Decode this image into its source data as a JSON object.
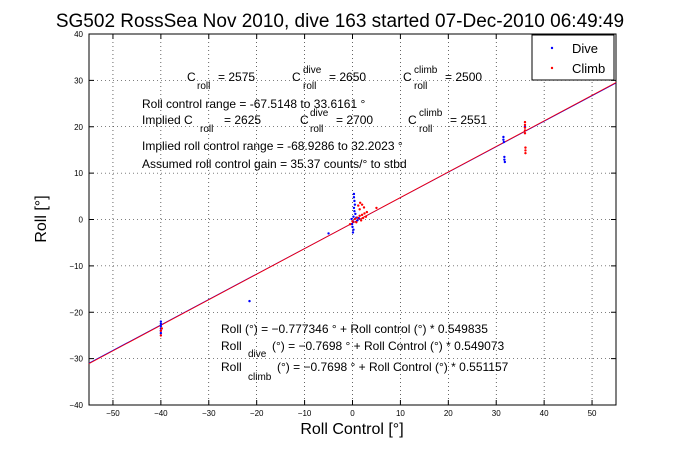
{
  "chart_data": {
    "type": "scatter",
    "title": "SG502 RossSea Nov 2010, dive 163 started 07-Dec-2010 06:49:49",
    "xlabel": "Roll Control [°]",
    "ylabel": "Roll [°]",
    "xlim": [
      -55,
      55
    ],
    "ylim": [
      -40,
      40
    ],
    "xticks": [
      -50,
      -40,
      -30,
      -20,
      -10,
      0,
      10,
      20,
      30,
      40,
      50
    ],
    "yticks": [
      -40,
      -30,
      -20,
      -10,
      0,
      10,
      20,
      30,
      40
    ],
    "grid": true,
    "legend_position": "top-right",
    "series": [
      {
        "name": "Dive",
        "color": "#0000ff",
        "marker": "dot",
        "points": [
          [
            -40,
            -22
          ],
          [
            -40,
            -22.5
          ],
          [
            -40,
            -23
          ],
          [
            -40,
            -23.5
          ],
          [
            -40,
            -24
          ],
          [
            -40,
            -24.5
          ],
          [
            -5,
            -3
          ],
          [
            -21.5,
            -17.6
          ],
          [
            0.3,
            5.5
          ],
          [
            0.3,
            4.8
          ],
          [
            0.4,
            4.0
          ],
          [
            0.5,
            3.2
          ],
          [
            0.3,
            2.5
          ],
          [
            0.4,
            1.8
          ],
          [
            0.6,
            1.2
          ],
          [
            0.2,
            0.6
          ],
          [
            -0.2,
            0.1
          ],
          [
            0.1,
            -0.4
          ],
          [
            -0.1,
            -1.0
          ],
          [
            0.0,
            -1.6
          ],
          [
            0.2,
            -2.2
          ],
          [
            0.1,
            -2.8
          ],
          [
            0.8,
            0.4
          ],
          [
            1.0,
            -0.2
          ],
          [
            1.3,
            0.3
          ],
          [
            31.5,
            17.8
          ],
          [
            31.5,
            17.2
          ],
          [
            31.6,
            16.7
          ],
          [
            31.7,
            13.5
          ],
          [
            31.7,
            12.9
          ],
          [
            31.8,
            12.4
          ],
          [
            36.0,
            20.0
          ]
        ]
      },
      {
        "name": "Climb",
        "color": "#ff0000",
        "marker": "dot",
        "points": [
          [
            -40,
            -25
          ],
          [
            -40,
            -24
          ],
          [
            -39.8,
            -23.5
          ],
          [
            -0.5,
            -1.0
          ],
          [
            0.0,
            -0.4
          ],
          [
            0.5,
            0.1
          ],
          [
            1.0,
            0.4
          ],
          [
            1.5,
            0.8
          ],
          [
            2.0,
            1.0
          ],
          [
            2.5,
            1.3
          ],
          [
            3.0,
            1.6
          ],
          [
            1.8,
            -0.2
          ],
          [
            2.2,
            0.3
          ],
          [
            2.8,
            0.6
          ],
          [
            0.8,
            -0.6
          ],
          [
            1.2,
            3.0
          ],
          [
            1.6,
            3.6
          ],
          [
            2.0,
            3.2
          ],
          [
            2.4,
            2.6
          ],
          [
            1.5,
            2.2
          ],
          [
            5.0,
            2.5
          ],
          [
            36.0,
            21.0
          ],
          [
            36.0,
            20.4
          ],
          [
            36.0,
            19.8
          ],
          [
            36.0,
            19.2
          ],
          [
            36.0,
            18.6
          ],
          [
            36.1,
            15.5
          ],
          [
            36.1,
            14.9
          ],
          [
            36.1,
            14.3
          ]
        ]
      }
    ],
    "fit_lines": [
      {
        "name": "Roll",
        "color": "#ff0000",
        "intercept": -0.777346,
        "slope": 0.549835
      },
      {
        "name": "Roll dive",
        "color": "#0000ff",
        "intercept": -0.7698,
        "slope": 0.549073
      },
      {
        "name": "Roll climb",
        "color": "#ff0000",
        "intercept": -0.7698,
        "slope": 0.551157
      }
    ],
    "annotations": {
      "c_roll": "C",
      "c_roll_sub": "roll",
      "c_roll_val": "= 2575",
      "c_roll_dive": "C",
      "c_roll_dive_sup": "dive",
      "c_roll_dive_sub": "roll",
      "c_roll_dive_val": "= 2650",
      "c_roll_climb": "C",
      "c_roll_climb_sup": "climb",
      "c_roll_climb_sub": "roll",
      "c_roll_climb_val": "= 2500",
      "range_line": "Roll control range = -67.5148 to 33.6161 °",
      "implied_prefix": "Implied C",
      "implied_sub": "roll",
      "implied_val": "= 2625",
      "implied_dive": "C",
      "implied_dive_sup": "dive",
      "implied_dive_sub": "roll",
      "implied_dive_val": "= 2700",
      "implied_climb": "C",
      "implied_climb_sup": "climb",
      "implied_climb_sub": "roll",
      "implied_climb_val": "= 2551",
      "implied_range": "Implied roll control range = -68.9286 to 32.2023 °",
      "gain": "Assumed roll control gain = 35.37 counts/° to stbd",
      "eq1": "Roll (°) = −0.777346 ° + Roll control (°) * 0.549835",
      "eq2_prefix": "Roll",
      "eq2_sub": "dive",
      "eq2_rest": "(°) = −0.7698 ° + Roll Control (°) * 0.549073",
      "eq3_prefix": "Roll",
      "eq3_sub": "climb",
      "eq3_rest": "(°) = −0.7698 ° + Roll Control (°) * 0.551157"
    }
  }
}
